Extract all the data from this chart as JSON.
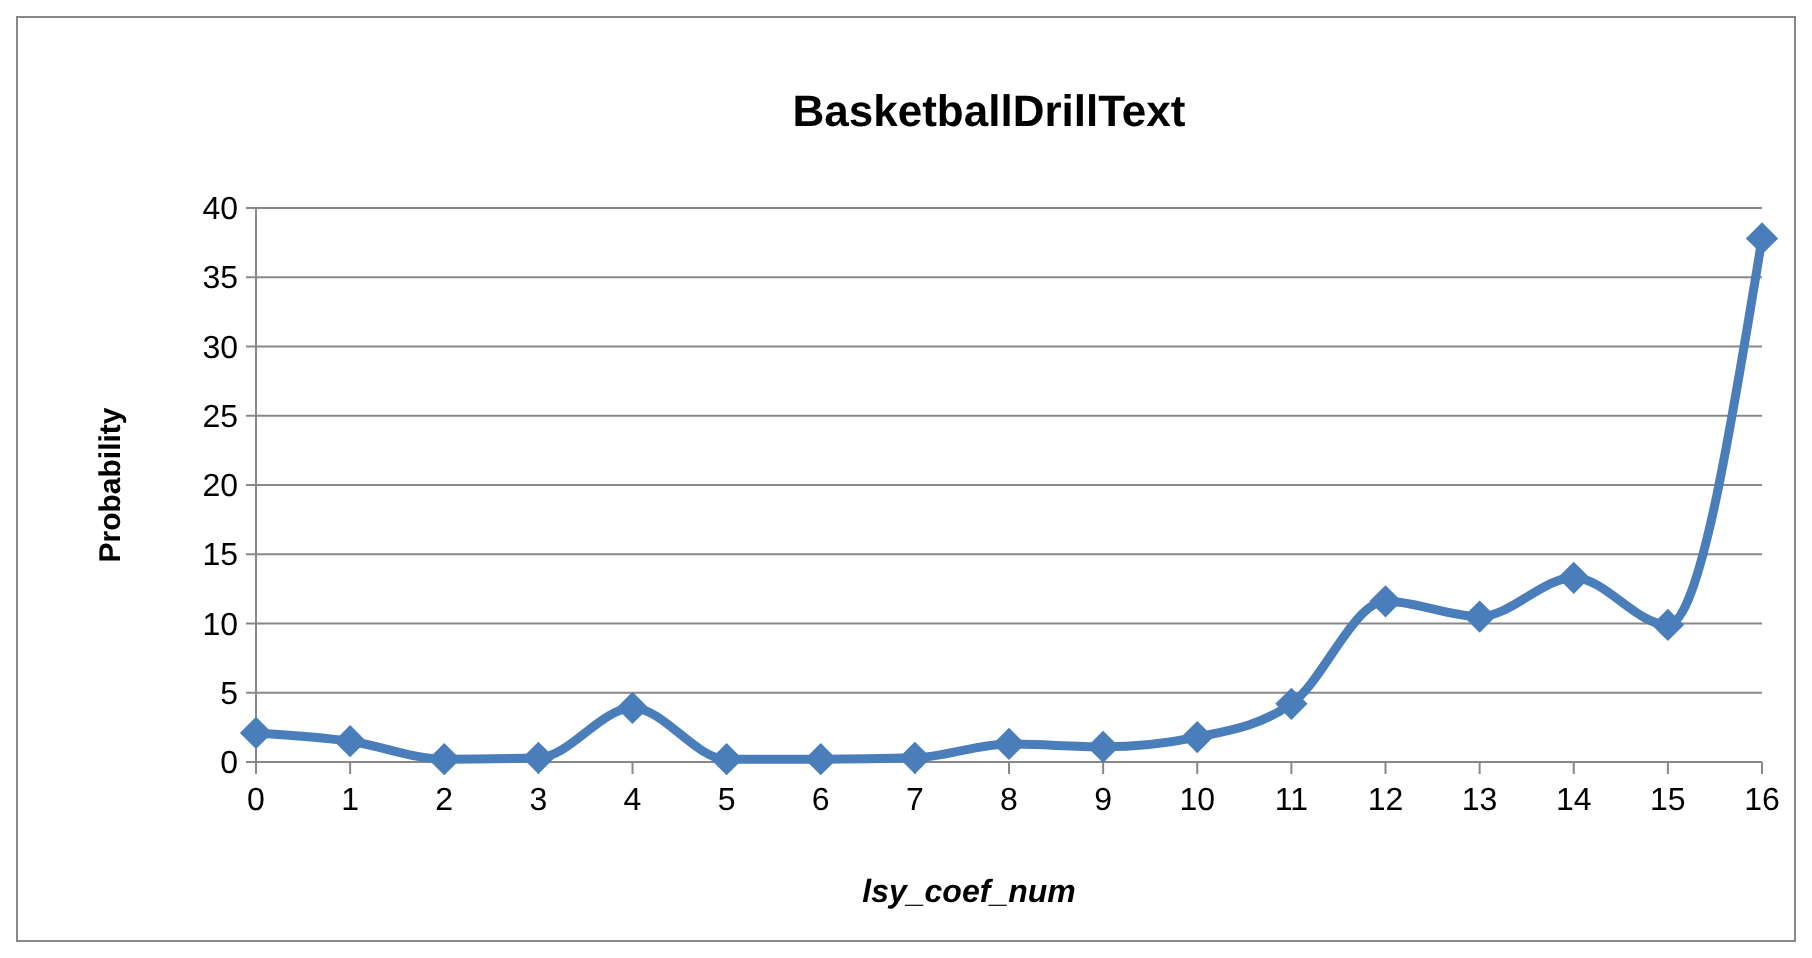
{
  "chart_data": {
    "type": "line",
    "title": "BasketballDrillText",
    "xlabel": "lsy_coef_num",
    "ylabel": "Probability",
    "x": [
      0,
      1,
      2,
      3,
      4,
      5,
      6,
      7,
      8,
      9,
      10,
      11,
      12,
      13,
      14,
      15,
      16
    ],
    "series": [
      {
        "color": "#4a7ebb",
        "values": [
          2.1,
          1.5,
          0.2,
          0.3,
          3.9,
          0.2,
          0.2,
          0.3,
          1.3,
          1.1,
          1.8,
          4.2,
          11.6,
          10.5,
          13.3,
          9.9,
          37.8
        ]
      }
    ],
    "xlim": [
      0,
      16
    ],
    "xticks": [
      0,
      1,
      2,
      3,
      4,
      5,
      6,
      7,
      8,
      9,
      10,
      11,
      12,
      13,
      14,
      15,
      16
    ],
    "ylim": [
      0,
      40
    ],
    "yticks": [
      0,
      5,
      10,
      15,
      20,
      25,
      30,
      35,
      40
    ],
    "grid": "y",
    "marker": "diamond"
  }
}
